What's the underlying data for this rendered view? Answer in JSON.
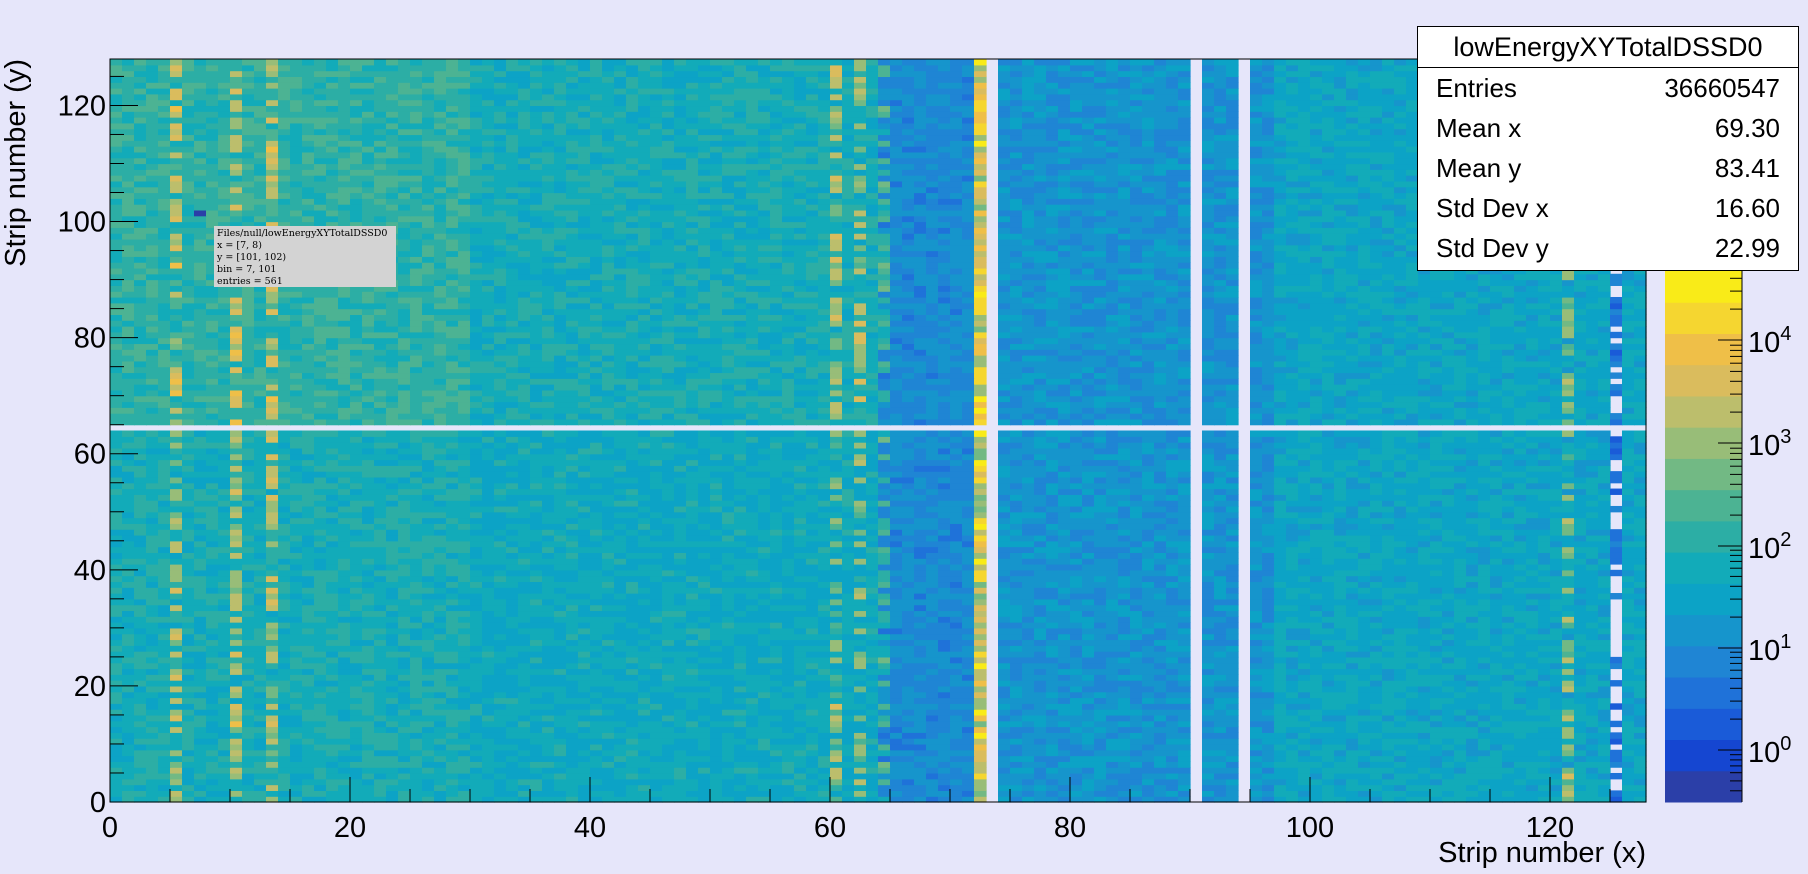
{
  "chart_data": {
    "type": "heatmap",
    "title": "lowEnergyXYTotalDSSD0",
    "xlabel": "Strip number (x)",
    "ylabel": "Strip number (y)",
    "xlim": [
      0,
      128
    ],
    "ylim": [
      0,
      128
    ],
    "x_ticks": [
      "0",
      "20",
      "40",
      "60",
      "80",
      "100",
      "120"
    ],
    "y_ticks": [
      "0",
      "20",
      "40",
      "60",
      "80",
      "100",
      "120"
    ],
    "z_scale": "log",
    "colorbar_ticks": [
      {
        "base": "10",
        "exp": "0"
      },
      {
        "base": "10",
        "exp": "1"
      },
      {
        "base": "10",
        "exp": "2"
      },
      {
        "base": "10",
        "exp": "3"
      },
      {
        "base": "10",
        "exp": "4"
      }
    ],
    "empty_columns": [
      73,
      90,
      94
    ],
    "empty_rows": [
      64
    ],
    "hot_columns": [
      5,
      10,
      13,
      60,
      62,
      64,
      72,
      121
    ],
    "dim_column_ranges": [
      [
        64,
        72
      ],
      [
        74,
        96
      ]
    ]
  },
  "stats": {
    "title": "lowEnergyXYTotalDSSD0",
    "rows": [
      {
        "label": "Entries",
        "value": "36660547"
      },
      {
        "label": "Mean x",
        "value": "69.30"
      },
      {
        "label": "Mean y",
        "value": "83.41"
      },
      {
        "label": "Std Dev x",
        "value": "16.60"
      },
      {
        "label": "Std Dev y",
        "value": "22.99"
      }
    ]
  },
  "tooltip": {
    "lines": [
      "Files/null/lowEnergyXYTotalDSSD0",
      "x = [7, 8)",
      "y = [101, 102)",
      "bin = 7, 101",
      "entries = 561"
    ]
  },
  "palette": [
    "#2b3fa8",
    "#1546d1",
    "#1a5bd8",
    "#1f72d9",
    "#1f85d4",
    "#1695cc",
    "#0ca3c6",
    "#12abb9",
    "#2caea5",
    "#4cb393",
    "#72b984",
    "#98bd78",
    "#bcbe6c",
    "#dabc5d",
    "#efbf48",
    "#f5d630",
    "#f9eb18"
  ]
}
